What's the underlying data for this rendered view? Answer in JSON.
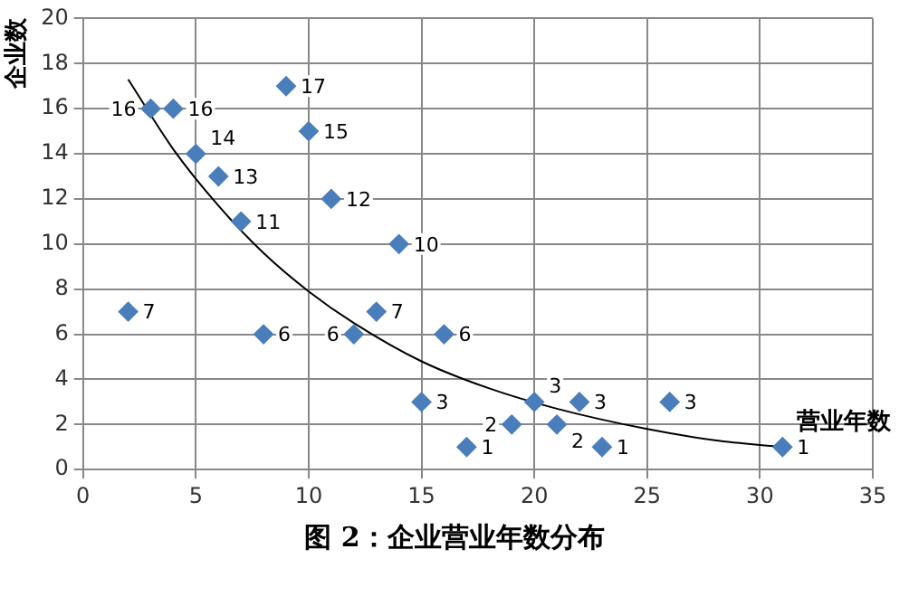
{
  "chart_data": {
    "type": "scatter",
    "title": "图 2：企业营业年数分布",
    "xlabel": "营业年数",
    "ylabel": "企业数",
    "xlim": [
      0,
      35
    ],
    "xticks": [
      0,
      5,
      10,
      15,
      20,
      25,
      30,
      35
    ],
    "ylim": [
      0,
      20
    ],
    "yticks": [
      0,
      2,
      4,
      6,
      8,
      10,
      12,
      14,
      16,
      18,
      20
    ],
    "grid": true,
    "marker": "diamond",
    "series": [
      {
        "color": "#4a7ebb",
        "x": [
          2,
          3,
          4,
          5,
          6,
          7,
          8,
          9,
          10,
          11,
          12,
          13,
          14,
          15,
          16,
          17,
          19,
          20,
          21,
          22,
          23,
          26,
          31
        ],
        "values": [
          7,
          16,
          16,
          14,
          13,
          11,
          6,
          17,
          15,
          12,
          6,
          7,
          10,
          3,
          6,
          1,
          2,
          3,
          2,
          3,
          1,
          3,
          1
        ],
        "value_labels": [
          "7",
          "16",
          "16",
          "14",
          "13",
          "11",
          "6",
          "17",
          "15",
          "12",
          "6",
          "7",
          "10",
          "3",
          "6",
          "1",
          "2",
          "3",
          "2",
          "3",
          "1",
          "3",
          "1"
        ]
      },
      {
        "type": "line",
        "color": "#000000",
        "marker": "none",
        "x": [
          2,
          4,
          6,
          8,
          10,
          12,
          15,
          18,
          21,
          25,
          28,
          31
        ],
        "values": [
          17.3,
          14.2,
          11.7,
          9.6,
          7.9,
          6.5,
          4.8,
          3.6,
          2.7,
          1.8,
          1.3,
          1.0
        ]
      }
    ]
  }
}
